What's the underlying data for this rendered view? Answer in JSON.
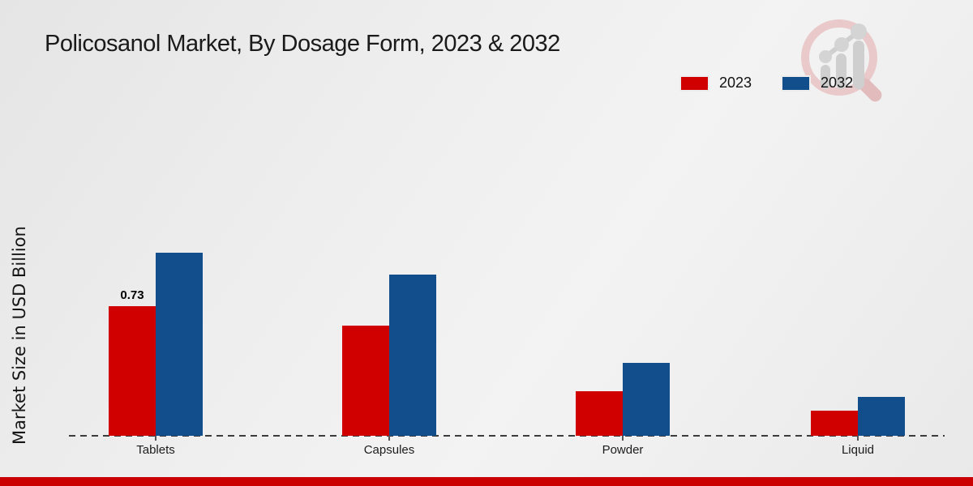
{
  "page": {
    "title": "Policosanol Market, By Dosage Form, 2023 & 2032"
  },
  "chart_data": {
    "type": "bar",
    "title": "Policosanol Market, By Dosage Form, 2023 & 2032",
    "xlabel": "",
    "ylabel": "Market Size in USD Billion",
    "categories": [
      "Tablets",
      "Capsules",
      "Powder",
      "Liquid"
    ],
    "series": [
      {
        "name": "2023",
        "color": "#d00000",
        "values": [
          0.73,
          0.62,
          0.25,
          0.14
        ]
      },
      {
        "name": "2032",
        "color": "#134e8c",
        "values": [
          1.03,
          0.91,
          0.41,
          0.22
        ]
      }
    ],
    "value_labels": [
      {
        "category": "Tablets",
        "series": "2023",
        "text": "0.73"
      }
    ],
    "ylim": [
      0,
      1.2
    ],
    "grid": false,
    "baseline_style": "dashed",
    "legend_position": "top-right"
  },
  "legend": {
    "items": [
      {
        "label": "2023",
        "color": "#d00000"
      },
      {
        "label": "2032",
        "color": "#134e8c"
      }
    ]
  },
  "branding": {
    "watermark_icon": "magnifier-growth-chart-logo",
    "accent_bar_color": "#cb0000"
  }
}
